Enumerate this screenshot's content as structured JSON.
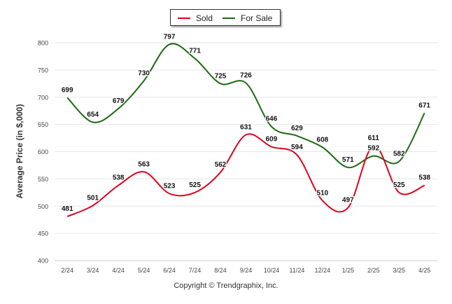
{
  "chart_data": {
    "type": "line",
    "categories": [
      "2/24",
      "3/24",
      "4/24",
      "5/24",
      "6/24",
      "7/24",
      "8/24",
      "9/24",
      "10/24",
      "11/24",
      "12/24",
      "1/25",
      "2/25",
      "3/25",
      "4/25"
    ],
    "series": [
      {
        "name": "Sold",
        "color": "#e0001b",
        "values": [
          481,
          501,
          538,
          563,
          523,
          525,
          562,
          631,
          609,
          594,
          510,
          497,
          611,
          525,
          538
        ]
      },
      {
        "name": "For Sale",
        "color": "#1a6b12",
        "values": [
          699,
          654,
          679,
          730,
          797,
          771,
          725,
          726,
          646,
          629,
          608,
          571,
          592,
          582,
          671
        ]
      }
    ],
    "ylabel": "Average Price (in $,000)",
    "ylim": [
      400,
      800
    ],
    "yticks": [
      400,
      450,
      500,
      550,
      600,
      650,
      700,
      750,
      800
    ],
    "grid": true,
    "legend_position": "top-center"
  },
  "credit": "Copyright © Trendgraphix, Inc."
}
